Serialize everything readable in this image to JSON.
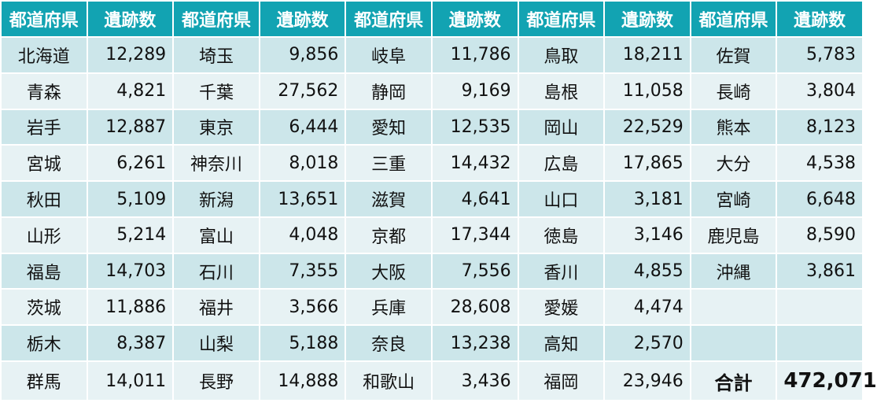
{
  "header": {
    "pref_label": "都道府県",
    "count_label": "遺跡数"
  },
  "columns": [
    {
      "rows": [
        {
          "pref": "北海道",
          "count": "12,289"
        },
        {
          "pref": "青森",
          "count": "4,821"
        },
        {
          "pref": "岩手",
          "count": "12,887"
        },
        {
          "pref": "宮城",
          "count": "6,261"
        },
        {
          "pref": "秋田",
          "count": "5,109"
        },
        {
          "pref": "山形",
          "count": "5,214"
        },
        {
          "pref": "福島",
          "count": "14,703"
        },
        {
          "pref": "茨城",
          "count": "11,886"
        },
        {
          "pref": "栃木",
          "count": "8,387"
        },
        {
          "pref": "群馬",
          "count": "14,011"
        }
      ]
    },
    {
      "rows": [
        {
          "pref": "埼玉",
          "count": "9,856"
        },
        {
          "pref": "千葉",
          "count": "27,562"
        },
        {
          "pref": "東京",
          "count": "6,444"
        },
        {
          "pref": "神奈川",
          "count": "8,018"
        },
        {
          "pref": "新潟",
          "count": "13,651"
        },
        {
          "pref": "富山",
          "count": "4,048"
        },
        {
          "pref": "石川",
          "count": "7,355"
        },
        {
          "pref": "福井",
          "count": "3,566"
        },
        {
          "pref": "山梨",
          "count": "5,188"
        },
        {
          "pref": "長野",
          "count": "14,888"
        }
      ]
    },
    {
      "rows": [
        {
          "pref": "岐阜",
          "count": "11,786"
        },
        {
          "pref": "静岡",
          "count": "9,169"
        },
        {
          "pref": "愛知",
          "count": "12,535"
        },
        {
          "pref": "三重",
          "count": "14,432"
        },
        {
          "pref": "滋賀",
          "count": "4,641"
        },
        {
          "pref": "京都",
          "count": "17,344"
        },
        {
          "pref": "大阪",
          "count": "7,556"
        },
        {
          "pref": "兵庫",
          "count": "28,608"
        },
        {
          "pref": "奈良",
          "count": "13,238"
        },
        {
          "pref": "和歌山",
          "count": "3,436"
        }
      ]
    },
    {
      "rows": [
        {
          "pref": "鳥取",
          "count": "18,211"
        },
        {
          "pref": "島根",
          "count": "11,058"
        },
        {
          "pref": "岡山",
          "count": "22,529"
        },
        {
          "pref": "広島",
          "count": "17,865"
        },
        {
          "pref": "山口",
          "count": "3,181"
        },
        {
          "pref": "徳島",
          "count": "3,146"
        },
        {
          "pref": "香川",
          "count": "4,855"
        },
        {
          "pref": "愛媛",
          "count": "4,474"
        },
        {
          "pref": "高知",
          "count": "2,570"
        },
        {
          "pref": "福岡",
          "count": "23,946"
        }
      ]
    },
    {
      "rows": [
        {
          "pref": "佐賀",
          "count": "5,783"
        },
        {
          "pref": "長崎",
          "count": "3,804"
        },
        {
          "pref": "熊本",
          "count": "8,123"
        },
        {
          "pref": "大分",
          "count": "4,538"
        },
        {
          "pref": "宮崎",
          "count": "6,648"
        },
        {
          "pref": "鹿児島",
          "count": "8,590"
        },
        {
          "pref": "沖縄",
          "count": "3,861"
        },
        {
          "pref": "",
          "count": ""
        },
        {
          "pref": "",
          "count": ""
        },
        {
          "pref": "合計",
          "count": "472,071"
        }
      ]
    }
  ],
  "colors": {
    "header_bg": "#12a3b2",
    "row_odd_bg": "#cce6ea",
    "row_even_bg": "#e7f2f4"
  }
}
